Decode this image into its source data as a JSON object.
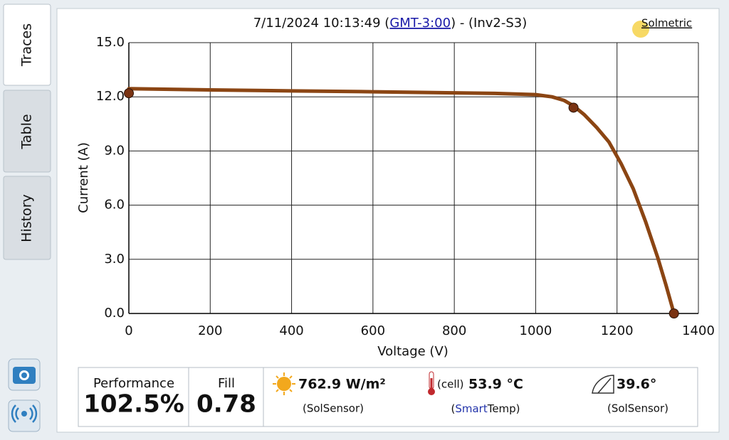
{
  "tabs": [
    "Traces",
    "Table",
    "History"
  ],
  "chart_data": {
    "type": "line",
    "title": [
      "7/11/2024 10:13:49 (",
      "GMT-3:00",
      ") - (Inv2-S3)"
    ],
    "brand": "Solmetric",
    "x_label": "Voltage (V)",
    "y_label": "Current (A)",
    "xlim": [
      0,
      1400
    ],
    "xticks": [
      0,
      200,
      400,
      600,
      800,
      1000,
      1200,
      1400
    ],
    "ylim": [
      0,
      15
    ],
    "yticks": [
      {
        "value": 0,
        "label": "0.0"
      },
      {
        "value": 3,
        "label": "3.0"
      },
      {
        "value": 6,
        "label": "6.0"
      },
      {
        "value": 9,
        "label": "9.0"
      },
      {
        "value": 12,
        "label": "12.0"
      },
      {
        "value": 15,
        "label": "15.0"
      }
    ],
    "grid": true,
    "series": [
      {
        "type": "line",
        "color": "#8b4513",
        "x": [
          0,
          200,
          400,
          600,
          800,
          900,
          1000,
          1040,
          1070,
          1093,
          1120,
          1150,
          1180,
          1210,
          1240,
          1270,
          1300,
          1320,
          1340
        ],
        "values": [
          12.45,
          12.38,
          12.33,
          12.28,
          12.22,
          12.19,
          12.12,
          12.0,
          11.8,
          11.5,
          11.0,
          10.3,
          9.5,
          8.3,
          6.9,
          5.1,
          3.1,
          1.6,
          0
        ]
      },
      {
        "type": "scatter",
        "color": "#7a3312",
        "x": [
          0,
          1093,
          1340
        ],
        "values": [
          12.2,
          11.4,
          0
        ]
      }
    ]
  },
  "metrics": {
    "performance": {
      "label": "Performance",
      "value": "102.5%"
    },
    "fill": {
      "label": "Fill",
      "value": "0.78"
    },
    "irradiance": {
      "value": "762.9 W/m²",
      "source": "(SolSensor)"
    },
    "temperature": {
      "prefix": "(cell)",
      "value": "53.9 °C",
      "source": [
        "(",
        "Smart",
        "Temp)"
      ]
    },
    "tilt": {
      "value": "39.6°",
      "source": "(SolSensor)"
    }
  }
}
